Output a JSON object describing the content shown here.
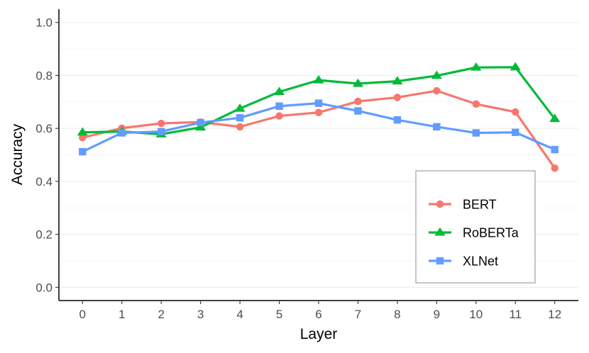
{
  "chart_data": {
    "type": "line",
    "xlabel": "Layer",
    "ylabel": "Accuracy",
    "x": [
      0,
      1,
      2,
      3,
      4,
      5,
      6,
      7,
      8,
      9,
      10,
      11,
      12
    ],
    "xlim": [
      -0.6,
      12.6
    ],
    "ylim": [
      -0.05,
      1.05
    ],
    "yticks": [
      0.0,
      0.2,
      0.4,
      0.6,
      0.8,
      1.0
    ],
    "ytick_labels": [
      "0.0",
      "0.2",
      "0.4",
      "0.6",
      "0.8",
      "1.0"
    ],
    "xtick_labels": [
      "0",
      "1",
      "2",
      "3",
      "4",
      "5",
      "6",
      "7",
      "8",
      "9",
      "10",
      "11",
      "12"
    ],
    "grid": "horizontal",
    "legend_position": "bottom-right",
    "series": [
      {
        "name": "BERT",
        "marker": "circle",
        "color": "#F8766D",
        "values": [
          0.565,
          0.601,
          0.619,
          0.624,
          0.606,
          0.647,
          0.66,
          0.702,
          0.717,
          0.742,
          0.692,
          0.662,
          0.45
        ]
      },
      {
        "name": "RoBERTa",
        "marker": "triangle",
        "color": "#00BA38",
        "values": [
          0.585,
          0.588,
          0.578,
          0.604,
          0.675,
          0.738,
          0.782,
          0.769,
          0.778,
          0.799,
          0.83,
          0.831,
          0.636
        ]
      },
      {
        "name": "XLNet",
        "marker": "square",
        "color": "#619CFF",
        "values": [
          0.512,
          0.583,
          0.588,
          0.622,
          0.64,
          0.684,
          0.695,
          0.666,
          0.632,
          0.606,
          0.583,
          0.585,
          0.52
        ]
      }
    ]
  }
}
